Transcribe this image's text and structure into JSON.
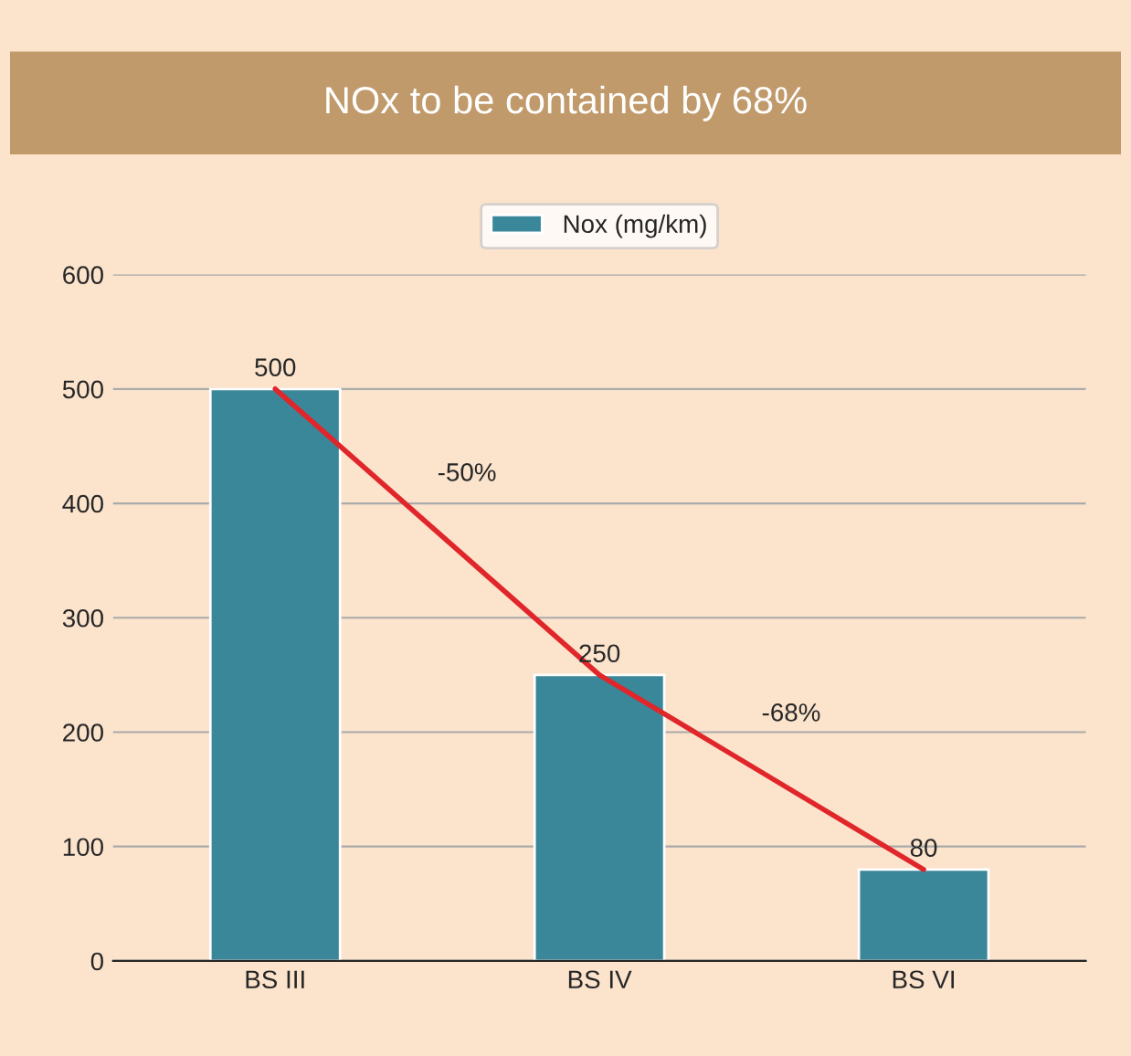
{
  "chart_data": {
    "type": "bar",
    "title": "NOx to be contained by 68%",
    "categories": [
      "BS III",
      "BS IV",
      "BS VI"
    ],
    "series": [
      {
        "name": "Nox (mg/km)",
        "color": "#3a8799",
        "values": [
          500,
          250,
          80
        ],
        "value_labels": [
          "500",
          "250",
          "80"
        ]
      },
      {
        "type": "line",
        "color": "#e0262a",
        "values": [
          500,
          250,
          80
        ]
      }
    ],
    "annotations": [
      "-50%",
      "-68%"
    ],
    "ylim": [
      0,
      600
    ],
    "yticks": [
      0,
      100,
      200,
      300,
      400,
      500,
      600
    ],
    "grid": "y",
    "legend": "top"
  }
}
